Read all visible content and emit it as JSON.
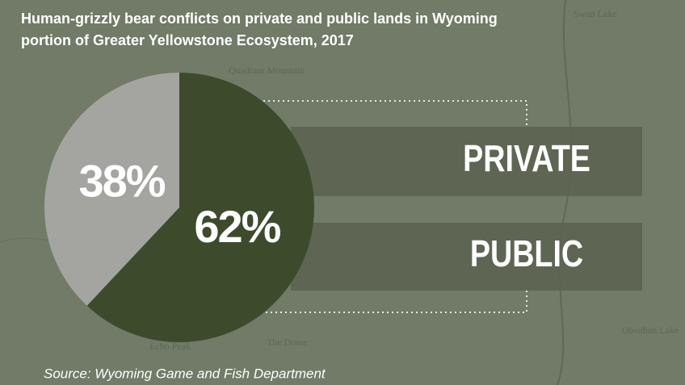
{
  "chart_data": {
    "type": "pie",
    "title": [
      "Human-grizzly bear conflicts on private and public lands in Wyoming",
      "portion of Greater Yellowstone Ecosystem, 2017"
    ],
    "categories": [
      "PUBLIC",
      "PRIVATE"
    ],
    "values": [
      62,
      38
    ],
    "value_labels": [
      "62%",
      "38%"
    ],
    "colors": [
      "#3d4b2c",
      "#a4a5a1"
    ],
    "source": "Source: Wyoming Game and Fish Department"
  },
  "map_labels": [
    "Quadrant Mountain",
    "Echo Peak",
    "The Dome",
    "Swan Lake",
    "Obsidian Lake"
  ]
}
